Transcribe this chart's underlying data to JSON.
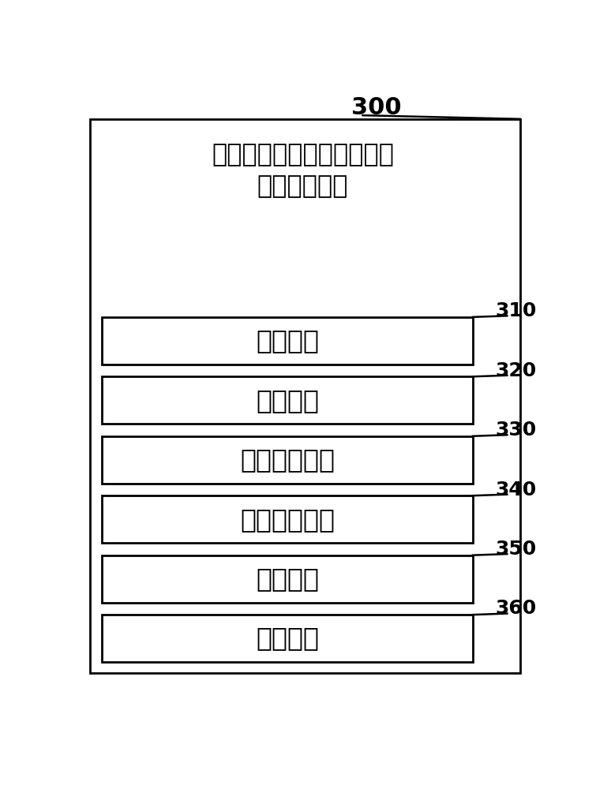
{
  "title_line1": "联合低秩约束跨视角判别子",
  "title_line2": "空间学习装置",
  "label_300": "300",
  "boxes": [
    {
      "label": "存储单元",
      "tag": "310"
    },
    {
      "label": "定义单元",
      "tag": "320"
    },
    {
      "label": "第一重拟单元",
      "tag": "330"
    },
    {
      "label": "第二重拟单元",
      "tag": "340"
    },
    {
      "label": "求解单元",
      "tag": "350"
    },
    {
      "label": "获得单元",
      "tag": "360"
    }
  ],
  "bg_color": "#ffffff",
  "box_edge_color": "#000000",
  "text_color": "#000000",
  "fig_width": 7.74,
  "fig_height": 10.0,
  "dpi": 100
}
